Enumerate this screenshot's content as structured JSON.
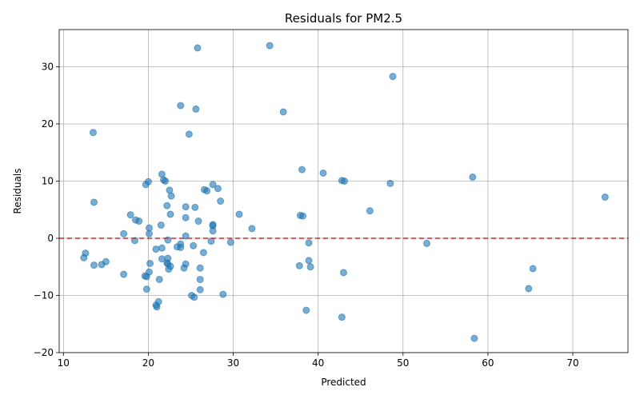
{
  "chart_data": {
    "type": "scatter",
    "title": "Residuals for PM2.5",
    "xlabel": "Predicted",
    "ylabel": "Residuals",
    "xlim": [
      9.5,
      76.5
    ],
    "ylim": [
      -20,
      36.5
    ],
    "xticks": [
      10,
      20,
      30,
      40,
      50,
      60,
      70
    ],
    "yticks": [
      -20,
      -10,
      0,
      10,
      20,
      30
    ],
    "xtick_labels": [
      "10",
      "20",
      "30",
      "40",
      "50",
      "60",
      "70"
    ],
    "ytick_labels": [
      "−20",
      "−10",
      "0",
      "10",
      "20",
      "30"
    ],
    "grid": true,
    "reference_line": {
      "y": 0,
      "color": "#d62728",
      "style": "dashed"
    },
    "point_color": "#1f77b4",
    "points": [
      [
        25.8,
        33.3
      ],
      [
        34.3,
        33.7
      ],
      [
        48.8,
        28.3
      ],
      [
        23.8,
        23.2
      ],
      [
        25.6,
        22.6
      ],
      [
        35.9,
        22.1
      ],
      [
        13.5,
        18.5
      ],
      [
        24.8,
        18.2
      ],
      [
        38.1,
        12.0
      ],
      [
        40.6,
        11.4
      ],
      [
        21.6,
        11.2
      ],
      [
        21.8,
        10.2
      ],
      [
        22.0,
        10.0
      ],
      [
        42.8,
        10.1
      ],
      [
        43.1,
        10.0
      ],
      [
        48.5,
        9.6
      ],
      [
        58.2,
        10.7
      ],
      [
        20.0,
        9.9
      ],
      [
        19.7,
        9.4
      ],
      [
        27.6,
        9.4
      ],
      [
        28.2,
        8.7
      ],
      [
        26.6,
        8.5
      ],
      [
        26.9,
        8.3
      ],
      [
        22.5,
        8.4
      ],
      [
        22.7,
        7.4
      ],
      [
        73.8,
        7.2
      ],
      [
        13.6,
        6.3
      ],
      [
        28.5,
        6.5
      ],
      [
        22.2,
        5.7
      ],
      [
        24.4,
        5.5
      ],
      [
        25.5,
        5.4
      ],
      [
        46.1,
        4.8
      ],
      [
        17.9,
        4.1
      ],
      [
        22.6,
        4.2
      ],
      [
        30.7,
        4.2
      ],
      [
        37.9,
        4.0
      ],
      [
        38.2,
        3.9
      ],
      [
        24.4,
        3.6
      ],
      [
        18.5,
        3.2
      ],
      [
        18.9,
        3.0
      ],
      [
        25.9,
        3.0
      ],
      [
        27.6,
        2.4
      ],
      [
        27.6,
        2.2
      ],
      [
        21.5,
        2.3
      ],
      [
        20.1,
        1.8
      ],
      [
        32.2,
        1.7
      ],
      [
        27.6,
        1.3
      ],
      [
        17.1,
        0.8
      ],
      [
        20.1,
        0.8
      ],
      [
        24.4,
        0.4
      ],
      [
        22.3,
        -0.3
      ],
      [
        18.4,
        -0.4
      ],
      [
        27.4,
        -0.5
      ],
      [
        29.7,
        -0.7
      ],
      [
        38.9,
        -0.8
      ],
      [
        52.8,
        -0.9
      ],
      [
        23.8,
        -1.0
      ],
      [
        25.3,
        -1.3
      ],
      [
        23.4,
        -1.5
      ],
      [
        23.8,
        -1.6
      ],
      [
        21.6,
        -1.7
      ],
      [
        20.9,
        -1.9
      ],
      [
        26.5,
        -2.5
      ],
      [
        12.6,
        -2.6
      ],
      [
        12.4,
        -3.4
      ],
      [
        21.6,
        -3.6
      ],
      [
        22.3,
        -3.5
      ],
      [
        38.9,
        -3.9
      ],
      [
        15.0,
        -4.1
      ],
      [
        20.2,
        -4.4
      ],
      [
        22.2,
        -4.3
      ],
      [
        22.3,
        -4.5
      ],
      [
        24.4,
        -4.5
      ],
      [
        13.6,
        -4.7
      ],
      [
        14.5,
        -4.6
      ],
      [
        22.6,
        -4.9
      ],
      [
        37.8,
        -4.8
      ],
      [
        39.1,
        -5.0
      ],
      [
        24.2,
        -5.2
      ],
      [
        26.1,
        -5.2
      ],
      [
        22.4,
        -5.4
      ],
      [
        65.3,
        -5.3
      ],
      [
        20.1,
        -5.9
      ],
      [
        43.0,
        -6.0
      ],
      [
        17.1,
        -6.3
      ],
      [
        19.6,
        -6.6
      ],
      [
        19.8,
        -6.7
      ],
      [
        21.3,
        -7.2
      ],
      [
        26.1,
        -7.2
      ],
      [
        19.8,
        -8.9
      ],
      [
        26.1,
        -9.0
      ],
      [
        64.8,
        -8.8
      ],
      [
        28.8,
        -9.8
      ],
      [
        25.1,
        -10.0
      ],
      [
        25.4,
        -10.3
      ],
      [
        21.2,
        -11.1
      ],
      [
        20.9,
        -11.7
      ],
      [
        21.0,
        -12.0
      ],
      [
        38.6,
        -12.6
      ],
      [
        42.8,
        -13.8
      ],
      [
        58.4,
        -17.5
      ]
    ]
  }
}
